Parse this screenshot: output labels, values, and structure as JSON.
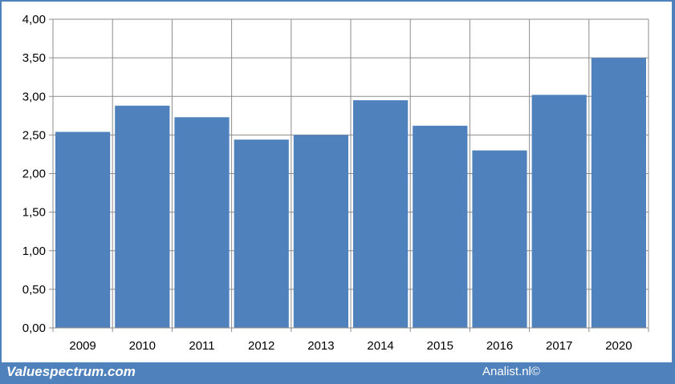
{
  "footer": {
    "left_text": "Valuespectrum.com",
    "right_text": "Analist.nl©"
  },
  "colors": {
    "bar": "#4f81bd",
    "frame": "#4f81bd",
    "grid": "#8c8c8c",
    "background": "#ffffff"
  },
  "chart_data": {
    "type": "bar",
    "categories": [
      "2009",
      "2010",
      "2011",
      "2012",
      "2013",
      "2014",
      "2015",
      "2016",
      "2017",
      "2020"
    ],
    "values": [
      2.54,
      2.88,
      2.73,
      2.44,
      2.5,
      2.95,
      2.62,
      2.3,
      3.02,
      3.5
    ],
    "ylim": [
      0,
      4
    ],
    "yticks": [
      "0,00",
      "0,50",
      "1,00",
      "1,50",
      "2,00",
      "2,50",
      "3,00",
      "3,50",
      "4,00"
    ],
    "grid": true,
    "legend": "none"
  }
}
